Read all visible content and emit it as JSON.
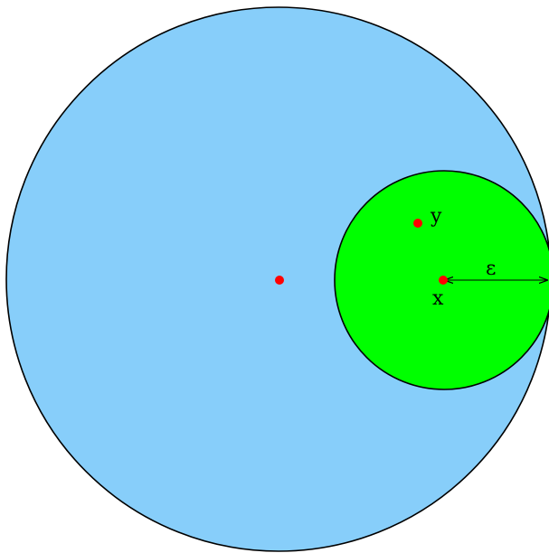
{
  "diagram": {
    "labels": {
      "point_y": "y",
      "point_x": "x",
      "radius": "ε"
    },
    "colors": {
      "outer_ball_fill": "#87cefa",
      "inner_ball_fill": "#00ff00",
      "outline": "#000000",
      "point": "#ff0000"
    }
  }
}
